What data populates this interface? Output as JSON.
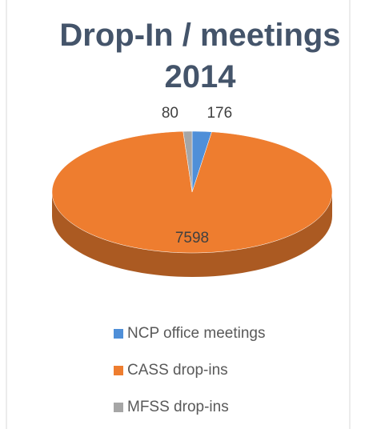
{
  "chart_data": {
    "type": "pie",
    "title": "Drop-In / meetings 2014",
    "categories": [
      "NCP office meetings",
      "CASS drop-ins",
      "MFSS drop-ins"
    ],
    "values": [
      176,
      7598,
      80
    ],
    "colors": [
      "#4f8fd8",
      "#ee7d2f",
      "#a6a6a6"
    ],
    "legend": "bottom"
  }
}
